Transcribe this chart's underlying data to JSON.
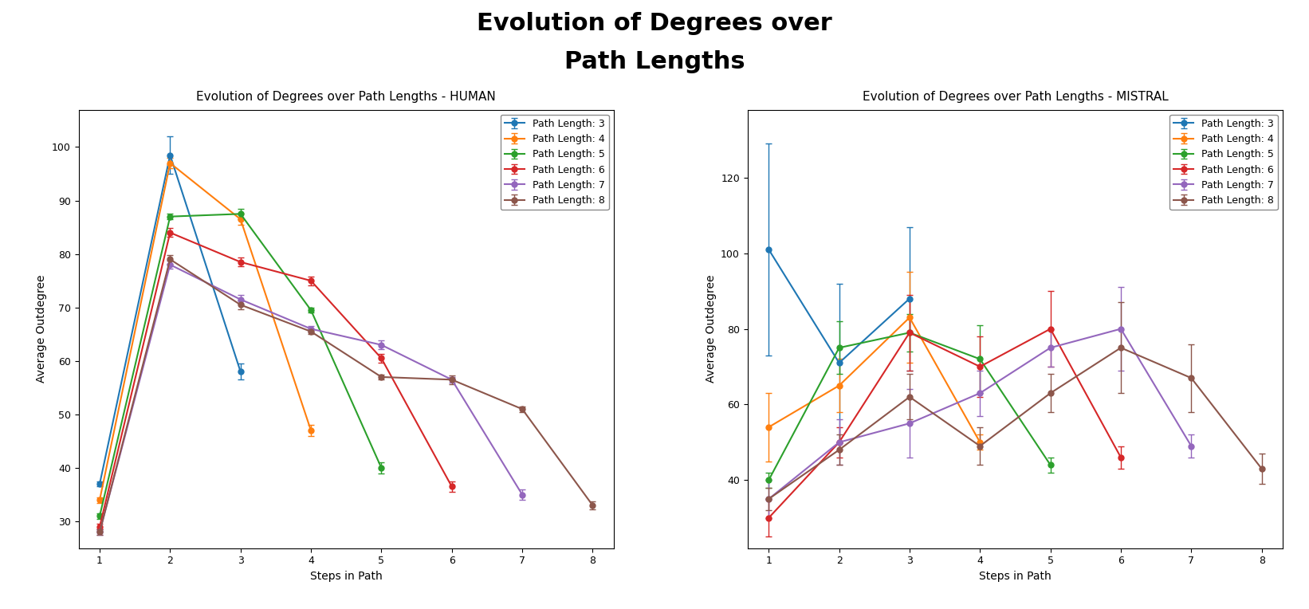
{
  "title": "Evolution of Degrees over\nPath Lengths",
  "human": {
    "title": "Evolution of Degrees over Path Lengths - HUMAN",
    "xlabel": "Steps in Path",
    "ylabel": "Average Outdegree",
    "series": {
      "Path Length: 3": {
        "steps": [
          1,
          2,
          3
        ],
        "y": [
          37,
          98.5,
          58
        ],
        "yerr": [
          0.5,
          3.5,
          1.5
        ]
      },
      "Path Length: 4": {
        "steps": [
          1,
          2,
          3,
          4
        ],
        "y": [
          34,
          97,
          86.5,
          47
        ],
        "yerr": [
          0.5,
          1.0,
          1.0,
          1.0
        ]
      },
      "Path Length: 5": {
        "steps": [
          1,
          2,
          3,
          4,
          5
        ],
        "y": [
          31,
          87,
          87.5,
          69.5,
          40
        ],
        "yerr": [
          0.5,
          0.5,
          1.0,
          0.5,
          1.0
        ]
      },
      "Path Length: 6": {
        "steps": [
          1,
          2,
          3,
          4,
          5,
          6
        ],
        "y": [
          29,
          84,
          78.5,
          75,
          60.5,
          36.5
        ],
        "yerr": [
          0.5,
          0.8,
          0.8,
          0.8,
          0.8,
          1.0
        ]
      },
      "Path Length: 7": {
        "steps": [
          1,
          2,
          3,
          4,
          5,
          6,
          7
        ],
        "y": [
          28,
          78,
          71.5,
          66,
          63,
          56.5,
          35
        ],
        "yerr": [
          0.5,
          0.8,
          0.8,
          0.5,
          0.8,
          0.5,
          1.0
        ]
      },
      "Path Length: 8": {
        "steps": [
          1,
          2,
          3,
          4,
          5,
          6,
          7,
          8
        ],
        "y": [
          28,
          79,
          70.5,
          65.5,
          57,
          56.5,
          51,
          33
        ],
        "yerr": [
          0.5,
          0.8,
          0.8,
          0.5,
          0.5,
          0.8,
          0.5,
          0.8
        ]
      }
    },
    "ylim": [
      25,
      107
    ],
    "xlim": [
      0.7,
      8.3
    ],
    "yticks": [
      30,
      40,
      50,
      60,
      70,
      80,
      90,
      100
    ]
  },
  "mistral": {
    "title": "Evolution of Degrees over Path Lengths - MISTRAL",
    "xlabel": "Steps in Path",
    "ylabel": "Average Outdegree",
    "series": {
      "Path Length: 3": {
        "steps": [
          1,
          2,
          3
        ],
        "y": [
          101,
          71,
          88
        ],
        "yerr": [
          28,
          21,
          19
        ]
      },
      "Path Length: 4": {
        "steps": [
          1,
          2,
          3,
          4
        ],
        "y": [
          54,
          65,
          83,
          50
        ],
        "yerr": [
          9,
          7,
          12,
          2
        ]
      },
      "Path Length: 5": {
        "steps": [
          1,
          2,
          3,
          4,
          5
        ],
        "y": [
          40,
          75,
          79,
          72,
          44
        ],
        "yerr": [
          2,
          7,
          5,
          9,
          2
        ]
      },
      "Path Length: 6": {
        "steps": [
          1,
          2,
          3,
          4,
          5,
          6
        ],
        "y": [
          30,
          50,
          79,
          70,
          80,
          46
        ],
        "yerr": [
          5,
          4,
          10,
          8,
          10,
          3
        ]
      },
      "Path Length: 7": {
        "steps": [
          1,
          2,
          3,
          4,
          5,
          6,
          7
        ],
        "y": [
          35,
          50,
          55,
          63,
          75,
          80,
          49
        ],
        "yerr": [
          5,
          6,
          9,
          6,
          5,
          11,
          3
        ]
      },
      "Path Length: 8": {
        "steps": [
          1,
          2,
          3,
          4,
          5,
          6,
          7,
          8
        ],
        "y": [
          35,
          48,
          62,
          49,
          63,
          75,
          67,
          43
        ],
        "yerr": [
          3,
          4,
          6,
          5,
          5,
          12,
          9,
          4
        ]
      }
    },
    "ylim": [
      22,
      138
    ],
    "xlim": [
      0.7,
      8.3
    ],
    "yticks": [
      40,
      60,
      80,
      100,
      120
    ]
  },
  "colors": {
    "Path Length: 3": "#1f77b4",
    "Path Length: 4": "#ff7f0e",
    "Path Length: 5": "#2ca02c",
    "Path Length: 6": "#d62728",
    "Path Length: 7": "#9467bd",
    "Path Length: 8": "#8c564b"
  },
  "marker": "o",
  "markersize": 5,
  "linewidth": 1.5,
  "capsize": 3,
  "elinewidth": 1.0,
  "title_fontsize": 22,
  "subtitle_fontsize": 11,
  "axis_label_fontsize": 10,
  "tick_fontsize": 9,
  "legend_fontsize": 9,
  "background_color": "#ffffff"
}
